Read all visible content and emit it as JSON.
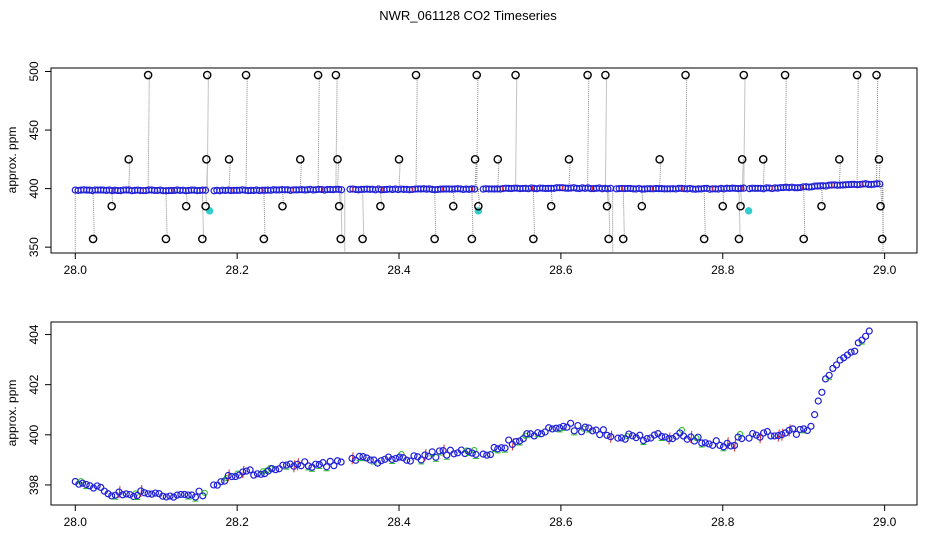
{
  "title": "NWR_061128  CO2 Timeseries",
  "colors": {
    "marker_main": "#1f1fd6",
    "marker_cyan": "#33cccc",
    "marker_green": "#22bb22",
    "marker_red": "#dd2222",
    "outlier": "#000000",
    "drop_line": "#888888"
  },
  "chart_data": [
    {
      "type": "scatter",
      "ylabel": "approx. ppm",
      "xlim": [
        27.97,
        29.04
      ],
      "ylim": [
        345,
        503
      ],
      "xticks": [
        "28.0",
        "28.2",
        "28.4",
        "28.6",
        "28.8",
        "29.0"
      ],
      "yticks": [
        "350",
        "400",
        "450",
        "500"
      ],
      "baseline": [
        [
          28.0,
          398.6
        ],
        [
          28.16,
          398.4
        ],
        [
          28.33,
          399.2
        ],
        [
          28.49,
          399.6
        ],
        [
          28.6,
          400.6
        ],
        [
          28.66,
          400.0
        ],
        [
          28.78,
          399.8
        ],
        [
          28.85,
          400.2
        ],
        [
          28.9,
          401.2
        ],
        [
          28.95,
          403.5
        ],
        [
          28.995,
          404.0
        ]
      ],
      "outliers": [
        {
          "x": 28.022,
          "y": 357
        },
        {
          "x": 28.045,
          "y": 385
        },
        {
          "x": 28.066,
          "y": 425
        },
        {
          "x": 28.09,
          "y": 497
        },
        {
          "x": 28.112,
          "y": 357
        },
        {
          "x": 28.137,
          "y": 385
        },
        {
          "x": 28.157,
          "y": 357
        },
        {
          "x": 28.161,
          "y": 385
        },
        {
          "x": 28.162,
          "y": 425
        },
        {
          "x": 28.163,
          "y": 497
        },
        {
          "x": 28.19,
          "y": 425
        },
        {
          "x": 28.211,
          "y": 497
        },
        {
          "x": 28.233,
          "y": 357
        },
        {
          "x": 28.256,
          "y": 385
        },
        {
          "x": 28.278,
          "y": 425
        },
        {
          "x": 28.3,
          "y": 497
        },
        {
          "x": 28.322,
          "y": 497
        },
        {
          "x": 28.324,
          "y": 425
        },
        {
          "x": 28.326,
          "y": 385
        },
        {
          "x": 28.328,
          "y": 357
        },
        {
          "x": 28.355,
          "y": 357
        },
        {
          "x": 28.377,
          "y": 385
        },
        {
          "x": 28.4,
          "y": 425
        },
        {
          "x": 28.421,
          "y": 497
        },
        {
          "x": 28.444,
          "y": 357
        },
        {
          "x": 28.467,
          "y": 385
        },
        {
          "x": 28.49,
          "y": 357
        },
        {
          "x": 28.494,
          "y": 425
        },
        {
          "x": 28.496,
          "y": 497
        },
        {
          "x": 28.498,
          "y": 385
        },
        {
          "x": 28.522,
          "y": 425
        },
        {
          "x": 28.544,
          "y": 497
        },
        {
          "x": 28.566,
          "y": 357
        },
        {
          "x": 28.588,
          "y": 385
        },
        {
          "x": 28.61,
          "y": 425
        },
        {
          "x": 28.633,
          "y": 497
        },
        {
          "x": 28.655,
          "y": 497
        },
        {
          "x": 28.657,
          "y": 385
        },
        {
          "x": 28.659,
          "y": 357
        },
        {
          "x": 28.677,
          "y": 357
        },
        {
          "x": 28.7,
          "y": 385
        },
        {
          "x": 28.722,
          "y": 425
        },
        {
          "x": 28.754,
          "y": 497
        },
        {
          "x": 28.777,
          "y": 357
        },
        {
          "x": 28.8,
          "y": 385
        },
        {
          "x": 28.82,
          "y": 357
        },
        {
          "x": 28.822,
          "y": 385
        },
        {
          "x": 28.824,
          "y": 425
        },
        {
          "x": 28.826,
          "y": 497
        },
        {
          "x": 28.85,
          "y": 425
        },
        {
          "x": 28.877,
          "y": 497
        },
        {
          "x": 28.9,
          "y": 357
        },
        {
          "x": 28.922,
          "y": 385
        },
        {
          "x": 28.944,
          "y": 425
        },
        {
          "x": 28.966,
          "y": 497
        },
        {
          "x": 28.99,
          "y": 497
        },
        {
          "x": 28.993,
          "y": 425
        },
        {
          "x": 28.995,
          "y": 385
        },
        {
          "x": 28.997,
          "y": 357
        }
      ],
      "cyan_points": [
        {
          "x": 28.166,
          "y": 381
        },
        {
          "x": 28.498,
          "y": 381
        },
        {
          "x": 28.832,
          "y": 381
        }
      ]
    },
    {
      "type": "scatter",
      "ylabel": "approx. ppm",
      "xlim": [
        27.97,
        29.04
      ],
      "ylim": [
        397.2,
        404.5
      ],
      "xticks": [
        "28.0",
        "28.2",
        "28.4",
        "28.6",
        "28.8",
        "29.0"
      ],
      "yticks": [
        "398",
        "400",
        "402",
        "404"
      ],
      "series_path": [
        [
          28.0,
          398.2
        ],
        [
          28.02,
          397.9
        ],
        [
          28.04,
          397.7
        ],
        [
          28.06,
          397.6
        ],
        [
          28.08,
          397.7
        ],
        [
          28.1,
          397.6
        ],
        [
          28.12,
          397.6
        ],
        [
          28.14,
          397.6
        ],
        [
          28.16,
          397.7
        ],
        [
          28.17,
          398.0
        ],
        [
          28.2,
          398.4
        ],
        [
          28.24,
          398.6
        ],
        [
          28.28,
          398.8
        ],
        [
          28.33,
          398.9
        ],
        [
          28.34,
          399.0
        ],
        [
          28.38,
          399.0
        ],
        [
          28.42,
          399.1
        ],
        [
          28.46,
          399.3
        ],
        [
          28.49,
          399.4
        ],
        [
          28.5,
          399.2
        ],
        [
          28.52,
          399.4
        ],
        [
          28.55,
          399.9
        ],
        [
          28.58,
          400.1
        ],
        [
          28.6,
          400.4
        ],
        [
          28.63,
          400.2
        ],
        [
          28.65,
          400.1
        ],
        [
          28.67,
          399.9
        ],
        [
          28.7,
          399.9
        ],
        [
          28.73,
          400.0
        ],
        [
          28.76,
          399.9
        ],
        [
          28.79,
          399.7
        ],
        [
          28.81,
          399.5
        ],
        [
          28.82,
          399.8
        ],
        [
          28.85,
          400.0
        ],
        [
          28.88,
          400.1
        ],
        [
          28.9,
          400.2
        ],
        [
          28.91,
          400.4
        ],
        [
          28.92,
          401.5
        ],
        [
          28.93,
          402.4
        ],
        [
          28.95,
          403.2
        ],
        [
          28.97,
          403.6
        ],
        [
          28.985,
          404.2
        ]
      ]
    }
  ]
}
